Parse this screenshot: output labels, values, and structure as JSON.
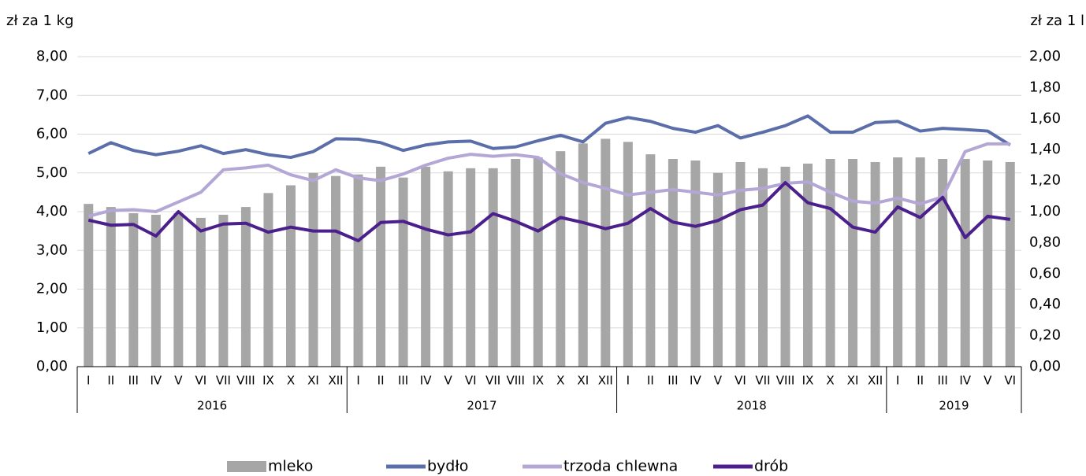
{
  "chart_data": {
    "type": "bar-line",
    "y_label": "zł za 1 kg",
    "y2_label": "zł za 1 l",
    "category_groups": [
      {
        "label": "2016",
        "categories": [
          "I",
          "II",
          "III",
          "IV",
          "V",
          "VI",
          "VII",
          "VIII",
          "IX",
          "X",
          "XI",
          "XII"
        ]
      },
      {
        "label": "2017",
        "categories": [
          "I",
          "II",
          "III",
          "IV",
          "V",
          "VI",
          "VII",
          "VIII",
          "IX",
          "X",
          "XI",
          "XII"
        ]
      },
      {
        "label": "2018",
        "categories": [
          "I",
          "II",
          "III",
          "IV",
          "V",
          "VI",
          "VII",
          "VIII",
          "IX",
          "X",
          "XI",
          "XII"
        ]
      },
      {
        "label": "2019",
        "categories": [
          "I",
          "II",
          "III",
          "IV",
          "V",
          "VI"
        ]
      }
    ],
    "ylim": [
      0,
      8
    ],
    "y2lim": [
      0,
      2
    ],
    "yticks": [
      {
        "value": 0,
        "label": "0,00"
      },
      {
        "value": 1,
        "label": "1,00"
      },
      {
        "value": 2,
        "label": "2,00"
      },
      {
        "value": 3,
        "label": "3,00"
      },
      {
        "value": 4,
        "label": "4,00"
      },
      {
        "value": 5,
        "label": "5,00"
      },
      {
        "value": 6,
        "label": "6,00"
      },
      {
        "value": 7,
        "label": "7,00"
      },
      {
        "value": 8,
        "label": "8,00"
      }
    ],
    "y2ticks": [
      {
        "value": 0,
        "label": "0,00"
      },
      {
        "value": 0.2,
        "label": "0,20"
      },
      {
        "value": 0.4,
        "label": "0,40"
      },
      {
        "value": 0.6,
        "label": "0,60"
      },
      {
        "value": 0.8,
        "label": "0,80"
      },
      {
        "value": 1,
        "label": "1,00"
      },
      {
        "value": 1.2,
        "label": "1,20"
      },
      {
        "value": 1.4,
        "label": "1,40"
      },
      {
        "value": 1.6,
        "label": "1,60"
      },
      {
        "value": 1.8,
        "label": "1,80"
      },
      {
        "value": 2,
        "label": "2,00"
      }
    ],
    "grid": true,
    "series": [
      {
        "name": "mleko",
        "type": "bar",
        "axis": "y2",
        "color": "#a6a6a6",
        "values": [
          1.05,
          1.03,
          0.99,
          0.98,
          0.99,
          0.96,
          0.98,
          1.03,
          1.12,
          1.17,
          1.25,
          1.23,
          1.24,
          1.29,
          1.22,
          1.29,
          1.26,
          1.28,
          1.28,
          1.34,
          1.35,
          1.39,
          1.44,
          1.47,
          1.45,
          1.37,
          1.34,
          1.33,
          1.25,
          1.32,
          1.28,
          1.29,
          1.31,
          1.34,
          1.34,
          1.32,
          1.35,
          1.35,
          1.34,
          1.34,
          1.33,
          1.32
        ]
      },
      {
        "name": "bydło",
        "type": "line",
        "color": "#5b6eaa",
        "values": [
          5.5,
          5.78,
          5.58,
          5.47,
          5.56,
          5.7,
          5.5,
          5.6,
          5.47,
          5.4,
          5.55,
          5.88,
          5.87,
          5.78,
          5.58,
          5.72,
          5.8,
          5.82,
          5.63,
          5.67,
          5.83,
          5.97,
          5.8,
          6.28,
          6.43,
          6.33,
          6.15,
          6.05,
          6.22,
          5.9,
          6.05,
          6.22,
          6.47,
          6.05,
          6.05,
          6.3,
          6.33,
          6.08,
          6.15,
          6.12,
          6.08,
          5.72
        ]
      },
      {
        "name": "trzoda chlewna",
        "type": "line",
        "color": "#b4a7d6",
        "values": [
          3.88,
          4.03,
          4.05,
          4.0,
          4.25,
          4.5,
          5.08,
          5.13,
          5.2,
          4.95,
          4.8,
          5.08,
          4.87,
          4.8,
          4.97,
          5.2,
          5.38,
          5.48,
          5.43,
          5.47,
          5.4,
          4.98,
          4.75,
          4.6,
          4.43,
          4.5,
          4.57,
          4.5,
          4.43,
          4.55,
          4.6,
          4.73,
          4.77,
          4.5,
          4.27,
          4.22,
          4.35,
          4.2,
          4.38,
          5.55,
          5.75,
          5.75
        ]
      },
      {
        "name": "drób",
        "type": "line",
        "color": "#4b1f8c",
        "values": [
          3.78,
          3.65,
          3.67,
          3.37,
          4.0,
          3.5,
          3.68,
          3.7,
          3.47,
          3.6,
          3.5,
          3.5,
          3.25,
          3.72,
          3.75,
          3.55,
          3.4,
          3.48,
          3.95,
          3.75,
          3.5,
          3.85,
          3.72,
          3.56,
          3.7,
          4.08,
          3.73,
          3.62,
          3.77,
          4.05,
          4.17,
          4.75,
          4.23,
          4.08,
          3.6,
          3.47,
          4.12,
          3.85,
          4.37,
          3.33,
          3.88,
          3.8
        ]
      }
    ]
  }
}
